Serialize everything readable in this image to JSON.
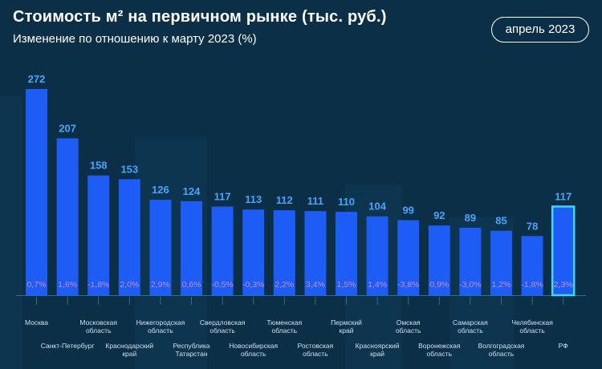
{
  "title": "Стоимость м² на первичном рынке (тыс. руб.)",
  "subtitle": "Изменение по отношению к марту 2023 (%)",
  "date_badge": "апрель 2023",
  "colors": {
    "background": "#0b2f46",
    "bar": "#1e5cf6",
    "bar_highlight": "#1e5cf6",
    "highlight_border": "#3fd8f2",
    "value_label": "#4aa3ff",
    "change_label": "#c58cf0",
    "category_label": "#cfe0ee",
    "baseline": "#2e6e92"
  },
  "chart_data": {
    "type": "bar",
    "title": "Стоимость м² на первичном рынке (тыс. руб.)",
    "subtitle": "Изменение по отношению к марту 2023 (%)",
    "ylabel": "тыс. руб.",
    "ylim": [
      0,
      272
    ],
    "grid": false,
    "categories": [
      [
        "Москва"
      ],
      [
        "Санкт-Петербург"
      ],
      [
        "Московская",
        "область"
      ],
      [
        "Краснодарский",
        "край"
      ],
      [
        "Нижегородская",
        "область"
      ],
      [
        "Республика",
        "Татарстан"
      ],
      [
        "Свердловская",
        "область"
      ],
      [
        "Новосибирская",
        "область"
      ],
      [
        "Тюменская",
        "область"
      ],
      [
        "Ростовская",
        "область"
      ],
      [
        "Пермский",
        "край"
      ],
      [
        "Красноярский",
        "край"
      ],
      [
        "Омская",
        "область"
      ],
      [
        "Воронежская",
        "область"
      ],
      [
        "Самарская",
        "область"
      ],
      [
        "Волгоградская",
        "область"
      ],
      [
        "Челябинская",
        "область"
      ],
      [
        "РФ"
      ]
    ],
    "values": [
      272,
      207,
      158,
      153,
      126,
      124,
      117,
      113,
      112,
      111,
      110,
      104,
      99,
      92,
      89,
      85,
      78,
      117
    ],
    "changes": [
      "0,7%",
      "1,6%",
      "-1,8%",
      "2,0%",
      "2,9%",
      "0,6%",
      "-0,5%",
      "-0,3%",
      "2,2%",
      "3,4%",
      "1,5%",
      "1,4%",
      "-3,8%",
      "0,9%",
      "-3,0%",
      "1,2%",
      "-1,8%",
      "2,3%"
    ],
    "highlight": "РФ"
  }
}
